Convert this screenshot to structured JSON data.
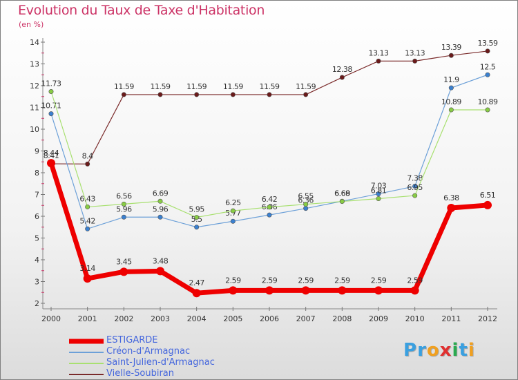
{
  "header": {
    "title": "Evolution du Taux de Taxe d'Habitation",
    "subtitle": "(en %)"
  },
  "logo": {
    "text": "Proxiti",
    "letters": [
      "P",
      "r",
      "o",
      "x",
      "i",
      "t",
      "i"
    ],
    "colors": [
      "#3aa0e0",
      "#3aa0e0",
      "#f0a020",
      "#e03030",
      "#2aaa50",
      "#3aa0e0",
      "#f0a020"
    ]
  },
  "chart_data": {
    "type": "line",
    "x": [
      "2000",
      "2001",
      "2002",
      "2003",
      "2004",
      "2005",
      "2006",
      "2007",
      "2008",
      "2009",
      "2010",
      "2011",
      "2012"
    ],
    "ylim": [
      2,
      14
    ],
    "yticks": [
      "2",
      "3",
      "4",
      "5",
      "6",
      "7",
      "8",
      "9",
      "10",
      "11",
      "12",
      "13",
      "14"
    ],
    "grid": false,
    "legend_position": "bottom-left",
    "series": [
      {
        "name": "Vielle-Soubiran",
        "color": "#7a2a2a",
        "dot": "#6a1a1a",
        "values": [
          8.41,
          8.4,
          11.59,
          11.59,
          11.59,
          11.59,
          11.59,
          11.59,
          12.38,
          13.13,
          13.13,
          13.39,
          13.59
        ],
        "labels": [
          "8.41",
          "8.4",
          "11.59",
          "11.59",
          "11.59",
          "11.59",
          "11.59",
          "11.59",
          "12.38",
          "13.13",
          "13.13",
          "13.39",
          "13.59"
        ]
      },
      {
        "name": "Créon-d'Armagnac",
        "color": "#6ca0d8",
        "dot": "#3a80d0",
        "values": [
          10.71,
          5.42,
          5.96,
          5.96,
          5.5,
          5.77,
          6.06,
          6.36,
          6.69,
          7.03,
          7.38,
          11.9,
          12.5
        ],
        "labels": [
          "10.71",
          "5.42",
          "5.96",
          "5.96",
          "5.5",
          "5.77",
          "6.06",
          "6.36",
          "6.69",
          "7.03",
          "7.38",
          "11.9",
          "12.5"
        ]
      },
      {
        "name": "Saint-Julien-d'Armagnac",
        "color": "#a8e070",
        "dot": "#88cc44",
        "values": [
          11.73,
          6.43,
          6.56,
          6.69,
          5.95,
          6.25,
          6.42,
          6.55,
          6.68,
          6.81,
          6.95,
          10.89,
          10.89
        ],
        "labels": [
          "11.73",
          "6.43",
          "6.56",
          "6.69",
          "5.95",
          "6.25",
          "6.42",
          "6.55",
          "6.68",
          "6.81",
          "6.95",
          "10.89",
          "10.89"
        ]
      },
      {
        "name": "ESTIGARDE",
        "color": "#ee0000",
        "dot": "#ee0000",
        "values": [
          8.44,
          3.14,
          3.45,
          3.48,
          2.47,
          2.59,
          2.59,
          2.59,
          2.59,
          2.59,
          2.59,
          6.38,
          6.51
        ],
        "labels": [
          "8.44",
          "3.14",
          "3.45",
          "3.48",
          "2.47",
          "2.59",
          "2.59",
          "2.59",
          "2.59",
          "2.59",
          "2.59",
          "6.38",
          "6.51"
        ]
      }
    ],
    "legend_order": [
      "ESTIGARDE",
      "Créon-d'Armagnac",
      "Saint-Julien-d'Armagnac",
      "Vielle-Soubiran"
    ]
  }
}
